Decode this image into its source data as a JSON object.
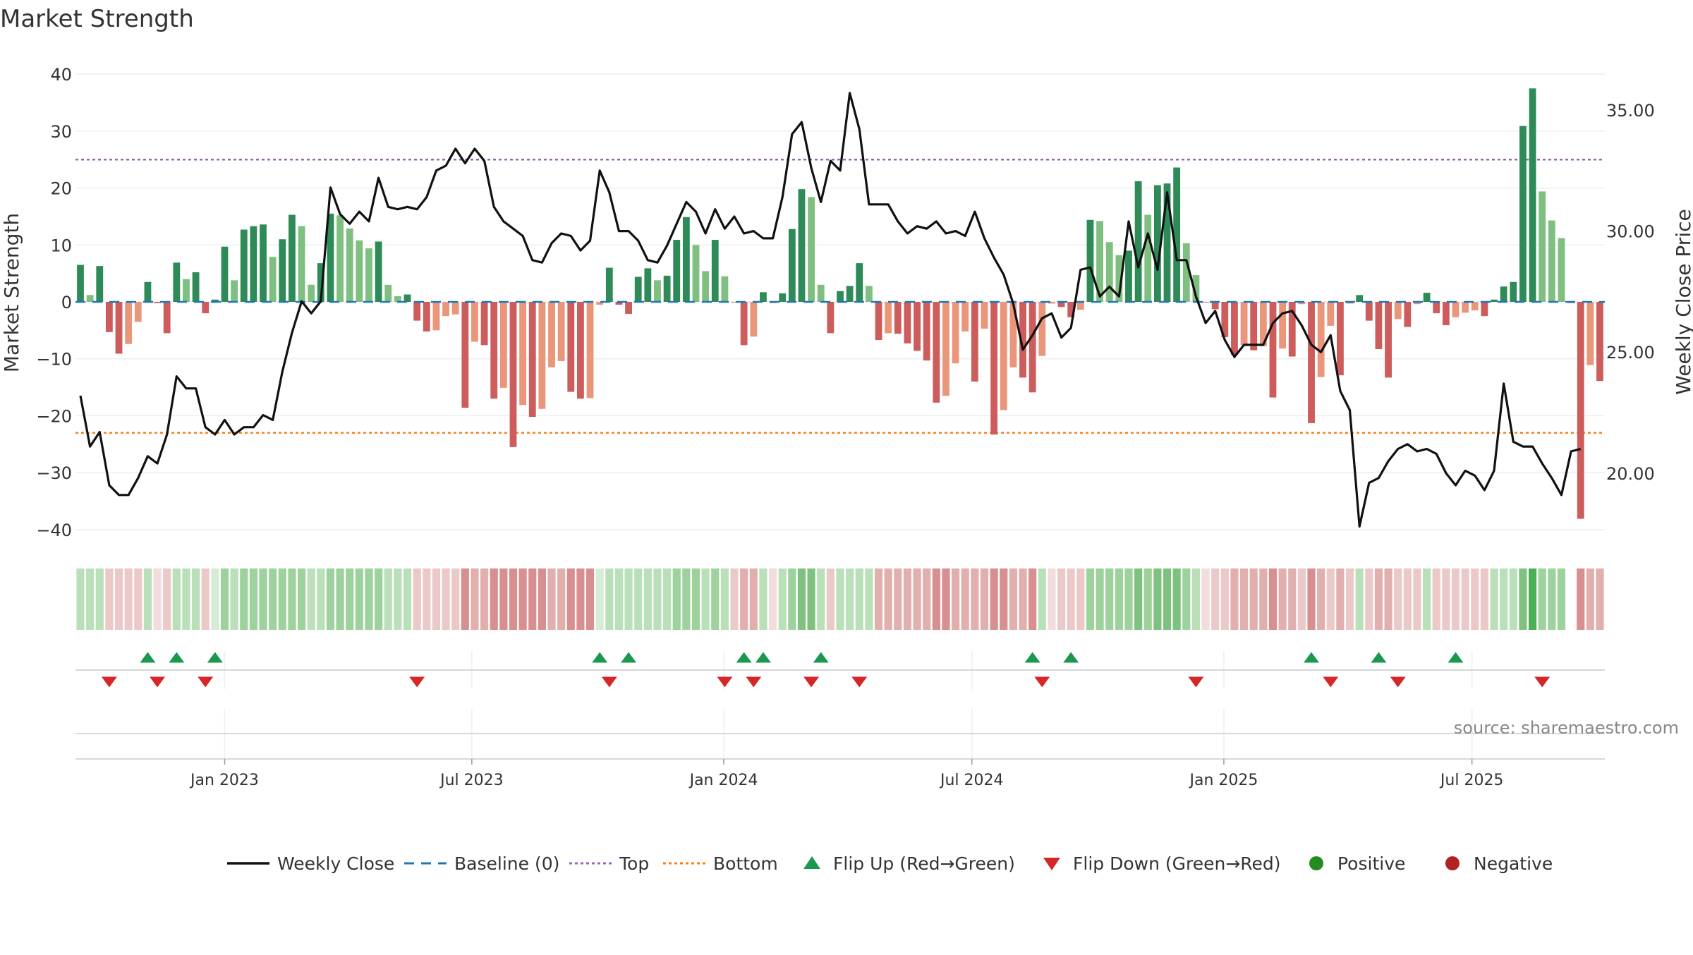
{
  "chart_data": {
    "type": "bar",
    "title": "Market Strength",
    "ylabel": "Market Strength",
    "y2label": "Weekly Close Price",
    "source": "source: sharemaestro.com",
    "ylim": [
      -42,
      42
    ],
    "y2lim": [
      17.2,
      36.95
    ],
    "yticks": [
      40,
      30,
      20,
      10,
      0,
      -10,
      -20,
      -30,
      -40
    ],
    "ytick_labels": [
      "40",
      "30",
      "20",
      "10",
      "0",
      "−10",
      "−20",
      "−30",
      "−40"
    ],
    "y2ticks": [
      35,
      30,
      25,
      20
    ],
    "y2tick_labels": [
      "35.00",
      "30.00",
      "25.00",
      "20.00"
    ],
    "x_start_week": 0,
    "x_end_week": 155,
    "xticks": [
      {
        "label": "Jan 2023",
        "week": 15
      },
      {
        "label": "Jul 2023",
        "week": 40.7
      },
      {
        "label": "Jan 2024",
        "week": 66.9
      },
      {
        "label": "Jul 2024",
        "week": 92.7
      },
      {
        "label": "Jan 2025",
        "week": 118.9
      },
      {
        "label": "Jul 2025",
        "week": 144.7
      }
    ],
    "top_line": 25,
    "bottom_line": -23,
    "colors": {
      "strong_pos": "#2e8b57",
      "weak_pos": "#7fbf7f",
      "strong_neg": "#cd5c5c",
      "weak_neg": "#e9967a",
      "close": "#111111",
      "baseline": "#1f77b4",
      "top": "#9467bd",
      "bottom": "#ff7f0e",
      "flip_up": "#1a9850",
      "flip_down": "#d62728",
      "positive": "#228b22",
      "negative": "#b22222"
    },
    "strength": [
      6.5,
      1.2,
      6.3,
      -5.3,
      -9.1,
      -7.4,
      -3.5,
      3.5,
      -0.2,
      -5.5,
      6.9,
      4.0,
      5.2,
      -2.0,
      0.4,
      9.7,
      3.8,
      12.7,
      13.3,
      13.6,
      7.9,
      11.0,
      15.3,
      13.3,
      3.0,
      6.8,
      15.5,
      15.2,
      12.9,
      10.8,
      9.4,
      10.6,
      3.0,
      1.0,
      1.3,
      -3.3,
      -5.2,
      -5.0,
      -2.5,
      -2.2,
      -18.6,
      -7.0,
      -7.6,
      -17.0,
      -15.1,
      -25.5,
      -18.1,
      -20.2,
      -18.8,
      -11.5,
      -10.4,
      -15.8,
      -17.0,
      -16.9,
      -0.5,
      6.0,
      -0.5,
      -2.1,
      4.4,
      5.9,
      3.8,
      4.6,
      10.9,
      14.9,
      10.0,
      5.4,
      10.9,
      4.5,
      -0.1,
      -7.6,
      -6.1,
      1.7,
      -0.2,
      1.5,
      12.8,
      19.8,
      18.4,
      3.0,
      -5.5,
      1.9,
      2.8,
      6.8,
      2.8,
      -6.7,
      -5.5,
      -5.6,
      -7.3,
      -8.6,
      -10.3,
      -17.7,
      -16.5,
      -10.8,
      -5.2,
      -14.0,
      -4.7,
      -23.3,
      -19.0,
      -11.5,
      -13.3,
      -15.9,
      -9.5,
      -0.3,
      -0.9,
      -2.7,
      -1.4,
      14.4,
      14.2,
      10.5,
      8.2,
      9.0,
      21.2,
      15.3,
      20.5,
      20.8,
      23.6,
      10.3,
      4.7,
      -0.1,
      -1.3,
      -6.2,
      -9.3,
      -7.6,
      -8.5,
      -7.8,
      -16.8,
      -8.2,
      -9.6,
      -0.4,
      -21.3,
      -13.2,
      -4.2,
      -12.9,
      -0.3,
      1.2,
      -3.3,
      -8.3,
      -13.3,
      -3.0,
      -4.4,
      -0.4,
      1.6,
      -2.0,
      -4.1,
      -2.7,
      -1.9,
      -1.5,
      -2.5,
      0.4,
      2.7,
      3.5,
      30.9,
      37.5,
      19.4,
      14.3,
      11.2,
      -0.2,
      -38.1,
      -11.1,
      -13.9
    ],
    "close": [
      23.2,
      21.1,
      21.7,
      19.5,
      19.1,
      19.1,
      19.8,
      20.7,
      20.4,
      21.6,
      24.0,
      23.5,
      23.5,
      21.9,
      21.6,
      22.2,
      21.6,
      21.9,
      21.9,
      22.4,
      22.2,
      24.2,
      25.8,
      27.1,
      26.6,
      27.1,
      31.8,
      30.7,
      30.3,
      30.8,
      30.4,
      32.2,
      31.0,
      30.9,
      31.0,
      30.9,
      31.4,
      32.5,
      32.7,
      33.4,
      32.8,
      33.4,
      32.9,
      31.0,
      30.4,
      30.1,
      29.8,
      28.8,
      28.7,
      29.5,
      29.9,
      29.8,
      29.2,
      29.6,
      32.5,
      31.6,
      30.0,
      30.0,
      29.6,
      28.8,
      28.7,
      29.4,
      30.3,
      31.2,
      30.8,
      29.9,
      30.9,
      30.1,
      30.6,
      29.9,
      30.0,
      29.7,
      29.7,
      31.4,
      34.0,
      34.5,
      32.6,
      31.2,
      32.9,
      32.5,
      35.7,
      34.2,
      31.1,
      31.1,
      31.1,
      30.4,
      29.9,
      30.2,
      30.1,
      30.4,
      29.9,
      30.0,
      29.8,
      30.8,
      29.7,
      28.9,
      28.2,
      27.0,
      25.1,
      25.7,
      26.4,
      26.6,
      25.6,
      26.0,
      28.4,
      28.5,
      27.3,
      27.7,
      27.3,
      30.4,
      28.5,
      29.9,
      28.4,
      31.6,
      28.8,
      28.8,
      27.3,
      26.2,
      26.7,
      25.5,
      24.8,
      25.3,
      25.3,
      25.3,
      26.2,
      26.6,
      26.7,
      26.1,
      25.3,
      25.0,
      25.7,
      23.4,
      22.6,
      17.8,
      19.6,
      19.8,
      20.5,
      21.0,
      21.2,
      20.9,
      21.0,
      20.8,
      20.0,
      19.5,
      20.1,
      19.9,
      19.3,
      20.1,
      23.7,
      21.3,
      21.1,
      21.1,
      20.4,
      19.8,
      19.1,
      20.9,
      21.0
    ],
    "flip_up_weeks": [
      7,
      10,
      14,
      54,
      57,
      69,
      71,
      77,
      99,
      103,
      128,
      135,
      143
    ],
    "flip_down_weeks": [
      3,
      8,
      13,
      35,
      55,
      67,
      70,
      76,
      81,
      100,
      116,
      130,
      137,
      152
    ],
    "state_strip": [
      [
        2,
        1
      ],
      [
        2,
        1
      ],
      [
        2,
        1
      ],
      [
        3,
        1
      ],
      [
        3,
        1
      ],
      [
        3,
        1
      ],
      [
        3,
        1
      ],
      [
        2,
        1
      ],
      [
        3,
        0
      ],
      [
        3,
        1
      ],
      [
        2,
        1
      ],
      [
        2,
        1
      ],
      [
        2,
        1
      ],
      [
        3,
        1
      ],
      [
        2,
        0
      ],
      [
        2,
        2
      ],
      [
        2,
        1
      ],
      [
        2,
        2
      ],
      [
        2,
        2
      ],
      [
        2,
        2
      ],
      [
        2,
        2
      ],
      [
        2,
        2
      ],
      [
        2,
        2
      ],
      [
        2,
        2
      ],
      [
        2,
        1
      ],
      [
        2,
        1
      ],
      [
        2,
        2
      ],
      [
        2,
        2
      ],
      [
        2,
        2
      ],
      [
        2,
        2
      ],
      [
        2,
        2
      ],
      [
        2,
        2
      ],
      [
        2,
        1
      ],
      [
        2,
        1
      ],
      [
        2,
        1
      ],
      [
        3,
        1
      ],
      [
        3,
        1
      ],
      [
        3,
        1
      ],
      [
        3,
        1
      ],
      [
        3,
        1
      ],
      [
        3,
        3
      ],
      [
        3,
        2
      ],
      [
        3,
        2
      ],
      [
        3,
        3
      ],
      [
        3,
        3
      ],
      [
        3,
        3
      ],
      [
        3,
        3
      ],
      [
        3,
        3
      ],
      [
        3,
        3
      ],
      [
        3,
        2
      ],
      [
        3,
        2
      ],
      [
        3,
        3
      ],
      [
        3,
        3
      ],
      [
        3,
        3
      ],
      [
        2,
        0
      ],
      [
        2,
        1
      ],
      [
        2,
        1
      ],
      [
        2,
        1
      ],
      [
        2,
        1
      ],
      [
        2,
        1
      ],
      [
        2,
        1
      ],
      [
        2,
        1
      ],
      [
        2,
        2
      ],
      [
        2,
        2
      ],
      [
        2,
        2
      ],
      [
        2,
        1
      ],
      [
        2,
        2
      ],
      [
        2,
        1
      ],
      [
        3,
        1
      ],
      [
        3,
        2
      ],
      [
        3,
        2
      ],
      [
        2,
        1
      ],
      [
        3,
        0
      ],
      [
        2,
        1
      ],
      [
        2,
        2
      ],
      [
        2,
        3
      ],
      [
        2,
        3
      ],
      [
        2,
        1
      ],
      [
        3,
        1
      ],
      [
        2,
        1
      ],
      [
        2,
        1
      ],
      [
        2,
        1
      ],
      [
        2,
        1
      ],
      [
        3,
        2
      ],
      [
        3,
        2
      ],
      [
        3,
        2
      ],
      [
        3,
        2
      ],
      [
        3,
        2
      ],
      [
        3,
        2
      ],
      [
        3,
        3
      ],
      [
        3,
        3
      ],
      [
        3,
        2
      ],
      [
        3,
        2
      ],
      [
        3,
        2
      ],
      [
        3,
        2
      ],
      [
        3,
        3
      ],
      [
        3,
        3
      ],
      [
        3,
        2
      ],
      [
        3,
        2
      ],
      [
        3,
        3
      ],
      [
        2,
        1
      ],
      [
        3,
        0
      ],
      [
        3,
        1
      ],
      [
        3,
        1
      ],
      [
        3,
        1
      ],
      [
        2,
        2
      ],
      [
        2,
        2
      ],
      [
        2,
        2
      ],
      [
        2,
        2
      ],
      [
        2,
        2
      ],
      [
        2,
        3
      ],
      [
        2,
        2
      ],
      [
        2,
        3
      ],
      [
        2,
        3
      ],
      [
        2,
        3
      ],
      [
        2,
        2
      ],
      [
        2,
        1
      ],
      [
        3,
        0
      ],
      [
        3,
        1
      ],
      [
        3,
        1
      ],
      [
        3,
        2
      ],
      [
        3,
        2
      ],
      [
        3,
        2
      ],
      [
        3,
        2
      ],
      [
        3,
        3
      ],
      [
        3,
        2
      ],
      [
        3,
        2
      ],
      [
        3,
        1
      ],
      [
        3,
        3
      ],
      [
        3,
        2
      ],
      [
        3,
        1
      ],
      [
        3,
        2
      ],
      [
        3,
        1
      ],
      [
        2,
        1
      ],
      [
        3,
        1
      ],
      [
        3,
        2
      ],
      [
        3,
        2
      ],
      [
        3,
        1
      ],
      [
        3,
        1
      ],
      [
        3,
        1
      ],
      [
        2,
        1
      ],
      [
        3,
        1
      ],
      [
        3,
        1
      ],
      [
        3,
        1
      ],
      [
        3,
        1
      ],
      [
        3,
        1
      ],
      [
        3,
        1
      ],
      [
        2,
        1
      ],
      [
        2,
        1
      ],
      [
        2,
        1
      ],
      [
        2,
        3
      ],
      [
        2,
        4
      ],
      [
        2,
        2
      ],
      [
        2,
        2
      ],
      [
        2,
        2
      ],
      [
        3,
        -1
      ],
      [
        3,
        3
      ],
      [
        3,
        2
      ],
      [
        3,
        2
      ]
    ],
    "legend": [
      {
        "label": "Weekly Close",
        "kind": "solid-line",
        "color_key": "close"
      },
      {
        "label": "Baseline (0)",
        "kind": "dashed-line",
        "color_key": "baseline"
      },
      {
        "label": "Top",
        "kind": "dotted-line",
        "color_key": "top"
      },
      {
        "label": "Bottom",
        "kind": "dotted-line",
        "color_key": "bottom"
      },
      {
        "label": "Flip Up (Red→Green)",
        "kind": "triangle-up",
        "color_key": "flip_up"
      },
      {
        "label": "Flip Down (Green→Red)",
        "kind": "triangle-down",
        "color_key": "flip_down"
      },
      {
        "label": "Positive",
        "kind": "circle",
        "color_key": "positive"
      },
      {
        "label": "Negative",
        "kind": "circle",
        "color_key": "negative"
      }
    ]
  }
}
